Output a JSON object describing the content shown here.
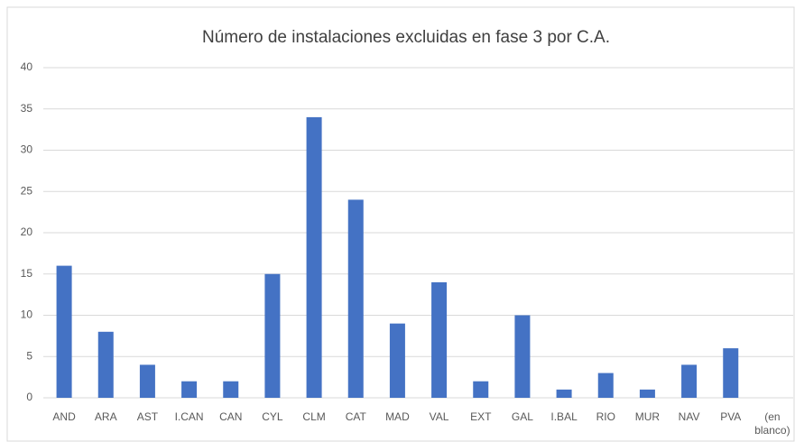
{
  "chart_data": {
    "type": "bar",
    "title": "Número de instalaciones excluidas en fase 3 por C.A.",
    "categories": [
      "AND",
      "ARA",
      "AST",
      "I.CAN",
      "CAN",
      "CYL",
      "CLM",
      "CAT",
      "MAD",
      "VAL",
      "EXT",
      "GAL",
      "I.BAL",
      "RIO",
      "MUR",
      "NAV",
      "PVA",
      "(en blanco)"
    ],
    "values": [
      16,
      8,
      4,
      2,
      2,
      15,
      34,
      24,
      9,
      14,
      2,
      10,
      1,
      3,
      1,
      4,
      6,
      0
    ],
    "color": "#4472c4",
    "ylim": [
      0,
      40
    ],
    "yticks": [
      0,
      5,
      10,
      15,
      20,
      25,
      30,
      35,
      40
    ],
    "grid": true
  }
}
